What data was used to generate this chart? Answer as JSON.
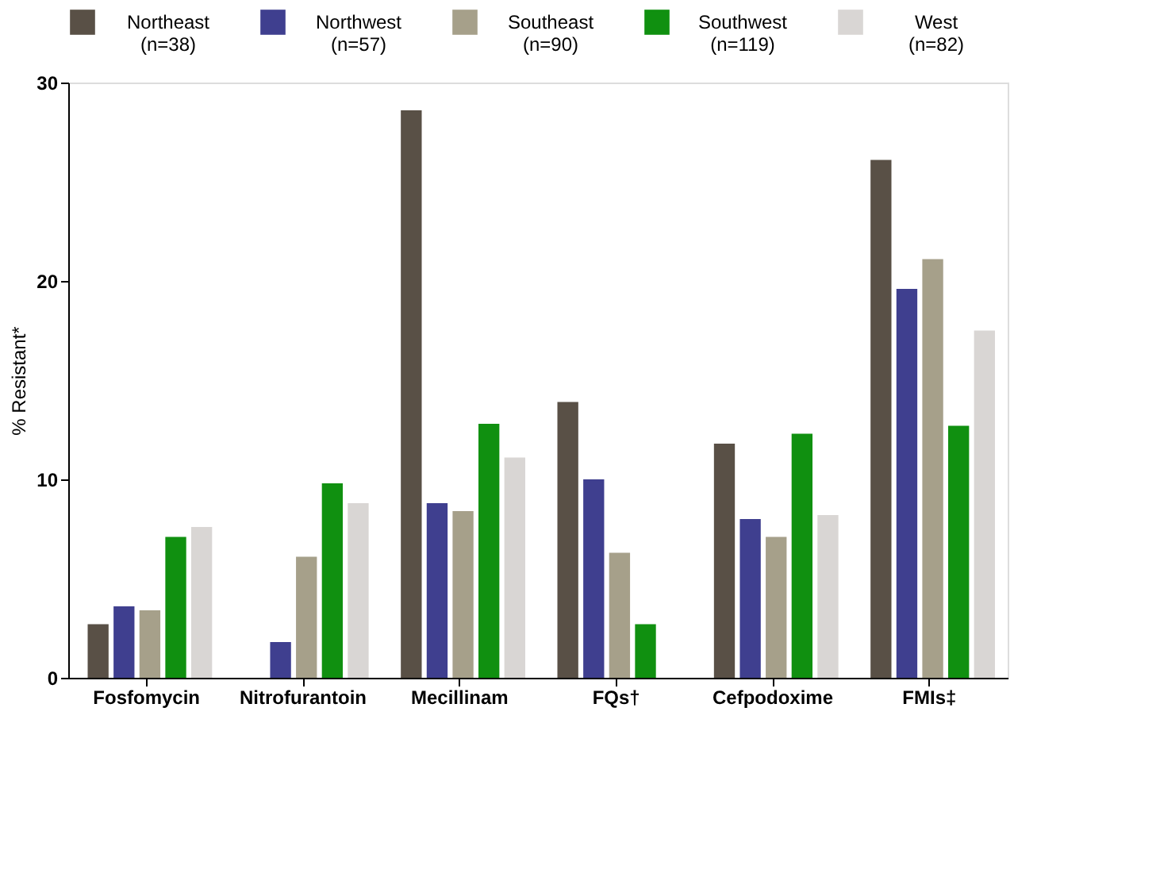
{
  "chart_data": {
    "type": "bar",
    "ylabel": "% Resistant*",
    "categories": [
      "Fosfomycin",
      "Nitrofurantoin",
      "Mecillinam",
      "FQs†",
      "Cefpodoxime",
      "FMIs‡"
    ],
    "series": [
      {
        "name": "Northeast\n(n=38)",
        "color": "#595046",
        "values": [
          2.7,
          null,
          28.6,
          13.9,
          11.8,
          26.1
        ]
      },
      {
        "name": "Northwest\n(n=57)",
        "color": "#3f3f8f",
        "values": [
          3.6,
          1.8,
          8.8,
          10.0,
          8.0,
          19.6
        ]
      },
      {
        "name": "Southeast\n(n=90)",
        "color": "#a6a08a",
        "values": [
          3.4,
          6.1,
          8.4,
          6.3,
          7.1,
          21.1
        ]
      },
      {
        "name": "Southwest\n(n=119)",
        "color": "#109010",
        "values": [
          7.1,
          9.8,
          12.8,
          2.7,
          12.3,
          12.7
        ]
      },
      {
        "name": "West\n(n=82)",
        "color": "#d9d6d4",
        "values": [
          7.6,
          8.8,
          11.1,
          null,
          8.2,
          17.5
        ]
      }
    ],
    "ylim": [
      0,
      30
    ],
    "yticks": [
      0,
      10,
      20,
      30
    ],
    "grid": false,
    "legend": "top"
  }
}
